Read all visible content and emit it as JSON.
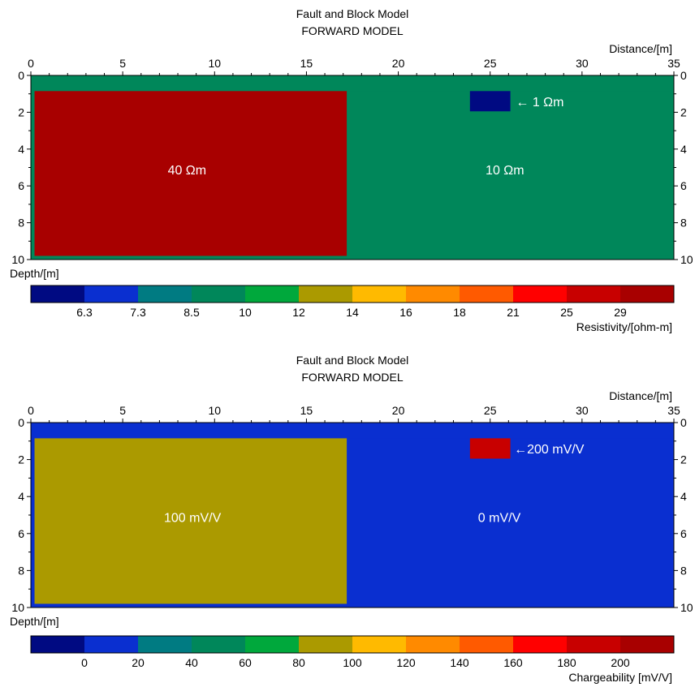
{
  "chart_data": [
    {
      "type": "heatmap",
      "title": "Fault and Block Model",
      "subtitle": "FORWARD MODEL",
      "xlabel": "Distance/[m]",
      "ylabel": "Depth/[m]",
      "xlim": [
        0,
        35
      ],
      "ylim": [
        0,
        10
      ],
      "y_inverted": true,
      "xticks": [
        0,
        5,
        10,
        15,
        20,
        25,
        30,
        35
      ],
      "yticks": [
        0,
        2,
        4,
        6,
        8,
        10
      ],
      "background": {
        "color": "#00875a"
      },
      "blocks": [
        {
          "x": [
            0.2,
            17.2
          ],
          "y": [
            0.85,
            9.8
          ],
          "color": "#a80000"
        },
        {
          "x": [
            17.2,
            34.8
          ],
          "y": [
            0.85,
            9.8
          ],
          "color": "#00875a"
        },
        {
          "x": [
            23.9,
            26.1
          ],
          "y": [
            0.85,
            1.95
          ],
          "color": "#000a82"
        }
      ],
      "annotations": [
        {
          "text": "40 Ωm",
          "x": 8.5,
          "y": 5.1
        },
        {
          "text": "10 Ωm",
          "x": 25.8,
          "y": 5.1
        },
        {
          "text": "← 1 Ωm",
          "x": 26.4,
          "y": 1.4
        }
      ],
      "colorbar": {
        "label": "Resistivity/[ohm-m]",
        "ticks": [
          "6.3",
          "7.3",
          "8.5",
          "10",
          "12",
          "14",
          "16",
          "18",
          "21",
          "25",
          "29"
        ],
        "colors": [
          "#000a82",
          "#0a2fd0",
          "#007b82",
          "#00875a",
          "#00a83c",
          "#ab9a00",
          "#ffba00",
          "#ff8a00",
          "#ff5a00",
          "#ff0000",
          "#c80000",
          "#a80000"
        ]
      }
    },
    {
      "type": "heatmap",
      "title": "Fault and Block Model",
      "subtitle": "FORWARD MODEL",
      "xlabel": "Distance/[m]",
      "ylabel": "Depth/[m]",
      "xlim": [
        0,
        35
      ],
      "ylim": [
        0,
        10
      ],
      "y_inverted": true,
      "xticks": [
        0,
        5,
        10,
        15,
        20,
        25,
        30,
        35
      ],
      "yticks": [
        0,
        2,
        4,
        6,
        8,
        10
      ],
      "background": {
        "color": "#0a2fd0"
      },
      "blocks": [
        {
          "x": [
            0.2,
            17.2
          ],
          "y": [
            0.85,
            9.8
          ],
          "color": "#ab9a00"
        },
        {
          "x": [
            17.2,
            34.8
          ],
          "y": [
            0.85,
            9.8
          ],
          "color": "#0a2fd0"
        },
        {
          "x": [
            23.9,
            26.1
          ],
          "y": [
            0.85,
            1.95
          ],
          "color": "#c80000"
        }
      ],
      "annotations": [
        {
          "text": "100 mV/V",
          "x": 8.8,
          "y": 5.1
        },
        {
          "text": "0 mV/V",
          "x": 25.5,
          "y": 5.1
        },
        {
          "text": "←200 mV/V",
          "x": 26.3,
          "y": 1.4
        }
      ],
      "colorbar": {
        "label": "Chargeability [mV/V]",
        "ticks": [
          "0",
          "20",
          "40",
          "60",
          "80",
          "100",
          "120",
          "140",
          "160",
          "180",
          "200"
        ],
        "colors": [
          "#000a82",
          "#0a2fd0",
          "#007b82",
          "#00875a",
          "#00a83c",
          "#ab9a00",
          "#ffba00",
          "#ff8a00",
          "#ff5a00",
          "#ff0000",
          "#c80000",
          "#a80000"
        ]
      }
    }
  ]
}
